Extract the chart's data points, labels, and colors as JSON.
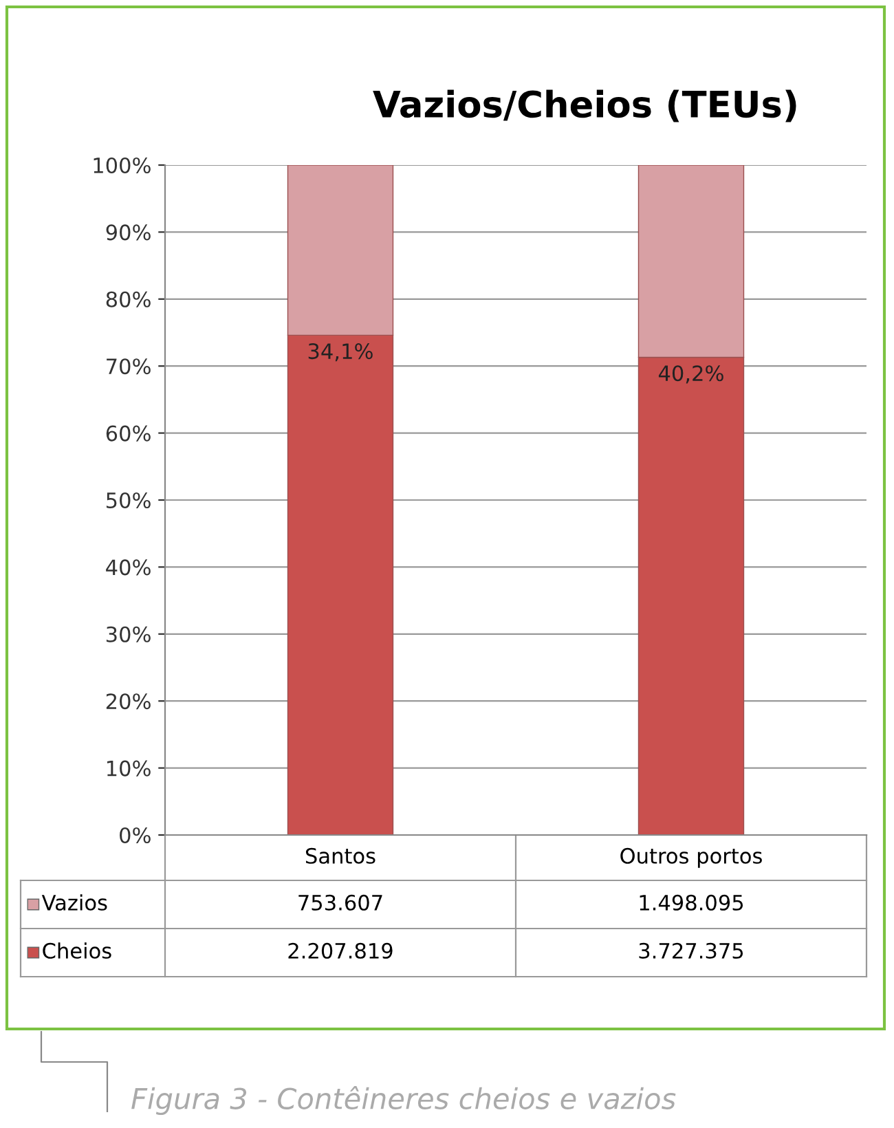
{
  "chart_data": {
    "type": "bar",
    "title": "Vazios/Cheios (TEUs)",
    "stacked": true,
    "categories": [
      "Santos",
      "Outros portos"
    ],
    "series": [
      {
        "name": "Cheios",
        "color": "#c9504e",
        "values": [
          74.6,
          71.3
        ]
      },
      {
        "name": "Vazios",
        "color": "#d8a0a4",
        "values": [
          25.4,
          28.7
        ]
      }
    ],
    "ylim": [
      0,
      100
    ],
    "yticks": [
      {
        "value": 0,
        "label": "0%"
      },
      {
        "value": 10,
        "label": "10%"
      },
      {
        "value": 20,
        "label": "20%"
      },
      {
        "value": 30,
        "label": "30%"
      },
      {
        "value": 40,
        "label": "40%"
      },
      {
        "value": 50,
        "label": "50%"
      },
      {
        "value": 60,
        "label": "60%"
      },
      {
        "value": 70,
        "label": "70%"
      },
      {
        "value": 80,
        "label": "80%"
      },
      {
        "value": 90,
        "label": "90%"
      },
      {
        "value": 100,
        "label": "100%"
      }
    ],
    "grid": "y",
    "legend": "bottom left",
    "annotations": [
      {
        "text": "34,1%",
        "x": "Santos",
        "y": 74.6
      },
      {
        "text": "40,2%",
        "x": "Outros portos",
        "y": 71.3
      },
      "753.607",
      "1.498.095",
      "2.207.819",
      "3.727.375",
      "Figura 3 - Contêineres cheios e vazios"
    ]
  }
}
